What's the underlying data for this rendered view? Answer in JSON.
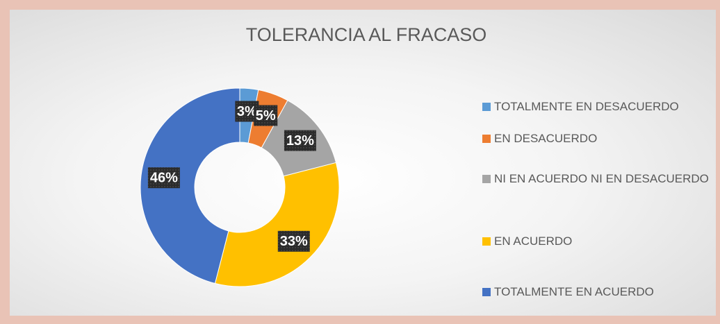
{
  "chart_data": {
    "type": "donut",
    "title": "TOLERANCIA AL FRACASO",
    "categories": [
      "TOTALMENTE EN DESACUERDO",
      "EN DESACUERDO",
      "NI EN ACUERDO NI EN DESACUERDO",
      "EN ACUERDO",
      "TOTALMENTE EN ACUERDO"
    ],
    "values": [
      3,
      5,
      13,
      33,
      46
    ],
    "value_labels": [
      "3%",
      "5%",
      "13%",
      "33%",
      "46%"
    ],
    "colors": [
      "#5b9bd5",
      "#ed7d31",
      "#a5a5a5",
      "#ffc000",
      "#4472c4"
    ],
    "legend": "right"
  }
}
